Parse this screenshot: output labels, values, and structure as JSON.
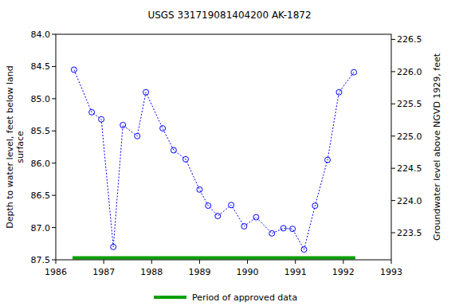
{
  "chart_data": {
    "type": "line",
    "title": "USGS 331719081404200 AK-1872",
    "y_label": [
      "Depth to water level, feet below land",
      "surface"
    ],
    "y2_label": "Groundwater level above NGVD 1929, feet",
    "xlim": [
      1986,
      1993
    ],
    "xticks": [
      1986,
      1987,
      1988,
      1989,
      1990,
      1991,
      1992,
      1993
    ],
    "ylim": [
      84.0,
      87.5
    ],
    "yticks": [
      {
        "value": 84,
        "label": "84.0"
      },
      84.5,
      {
        "value": 85,
        "label": "85.0"
      },
      85.5,
      {
        "value": 86,
        "label": "86.0"
      },
      86.5,
      {
        "value": 87,
        "label": "87.0"
      },
      87.5
    ],
    "y2lim": [
      226.58,
      223.08
    ],
    "y2ticks": [
      226.5,
      {
        "value": 226,
        "label": "226.0"
      },
      225.5,
      {
        "value": 225,
        "label": "225.0"
      },
      224.5,
      {
        "value": 224,
        "label": "224.0"
      },
      223.5
    ],
    "legend": "bottom",
    "series": [
      {
        "color": "#0000ff",
        "marker": "circle",
        "line_style": "dotted",
        "x": [
          1986.38,
          1986.75,
          1986.95,
          1987.2,
          1987.4,
          1987.7,
          1987.88,
          1988.23,
          1988.46,
          1988.71,
          1989.0,
          1989.18,
          1989.38,
          1989.66,
          1989.93,
          1990.18,
          1990.51,
          1990.75,
          1990.94,
          1991.18,
          1991.41,
          1991.67,
          1991.91,
          1992.22
        ],
        "values": [
          84.55,
          85.21,
          85.32,
          87.3,
          85.41,
          85.58,
          84.9,
          85.46,
          85.8,
          85.94,
          86.41,
          86.66,
          86.82,
          86.65,
          86.98,
          86.84,
          87.09,
          87.01,
          87.02,
          87.34,
          86.66,
          85.95,
          84.9,
          84.59
        ]
      },
      {
        "name": "Period of approved data",
        "color": "#00a000",
        "line_style": "solid",
        "x": [
          1986.35,
          1992.25
        ],
        "values": [
          87.47,
          87.47
        ]
      }
    ]
  }
}
